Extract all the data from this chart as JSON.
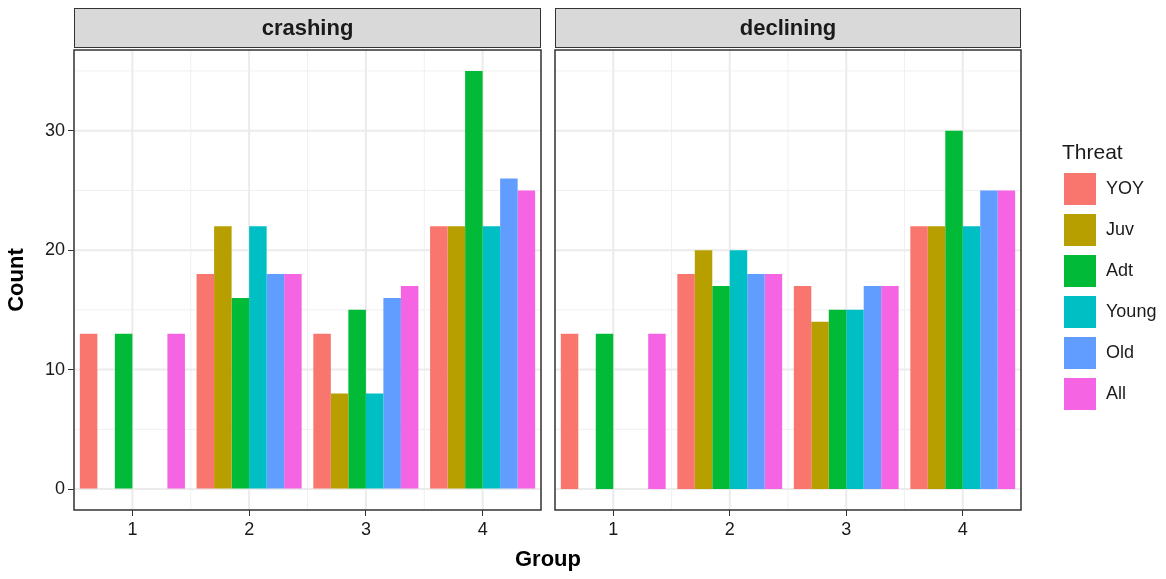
{
  "chart_data": [
    {
      "type": "bar",
      "title": "crashing",
      "xlabel": "Group",
      "ylabel": "Count",
      "categories": [
        "1",
        "2",
        "3",
        "4"
      ],
      "ylim": [
        -1.75,
        36.75
      ],
      "yticks": [
        0,
        10,
        20,
        30
      ],
      "grid": true,
      "series": [
        {
          "color": "#f8766d",
          "values": [
            13,
            18,
            13,
            22
          ]
        },
        {
          "color": "#b79f00",
          "values": [
            null,
            22,
            8,
            22
          ]
        },
        {
          "color": "#00ba38",
          "values": [
            13,
            16,
            15,
            35
          ]
        },
        {
          "color": "#00bfc4",
          "values": [
            null,
            22,
            8,
            22
          ]
        },
        {
          "color": "#619cff",
          "values": [
            null,
            18,
            16,
            26
          ]
        },
        {
          "color": "#f564e3",
          "values": [
            13,
            18,
            17,
            25
          ]
        }
      ]
    },
    {
      "type": "bar",
      "title": "declining",
      "legend_title": "Threat",
      "categories": [
        "1",
        "2",
        "3",
        "4"
      ],
      "ylim": [
        -1.75,
        36.75
      ],
      "yticks": [
        0,
        10,
        20,
        30
      ],
      "grid": true,
      "legend": "right",
      "tick_labels": "x",
      "series": [
        {
          "name": "YOY",
          "color": "#f8766d",
          "values": [
            13,
            18,
            17,
            22
          ]
        },
        {
          "name": "Juv",
          "color": "#b79f00",
          "values": [
            null,
            20,
            14,
            22
          ]
        },
        {
          "name": "Adt",
          "color": "#00ba38",
          "values": [
            13,
            17,
            15,
            30
          ]
        },
        {
          "name": "Young",
          "color": "#00bfc4",
          "values": [
            null,
            20,
            15,
            22
          ]
        },
        {
          "name": "Old",
          "color": "#619cff",
          "values": [
            null,
            18,
            17,
            25
          ]
        },
        {
          "name": "All",
          "color": "#f564e3",
          "values": [
            13,
            18,
            17,
            25
          ]
        }
      ]
    }
  ]
}
